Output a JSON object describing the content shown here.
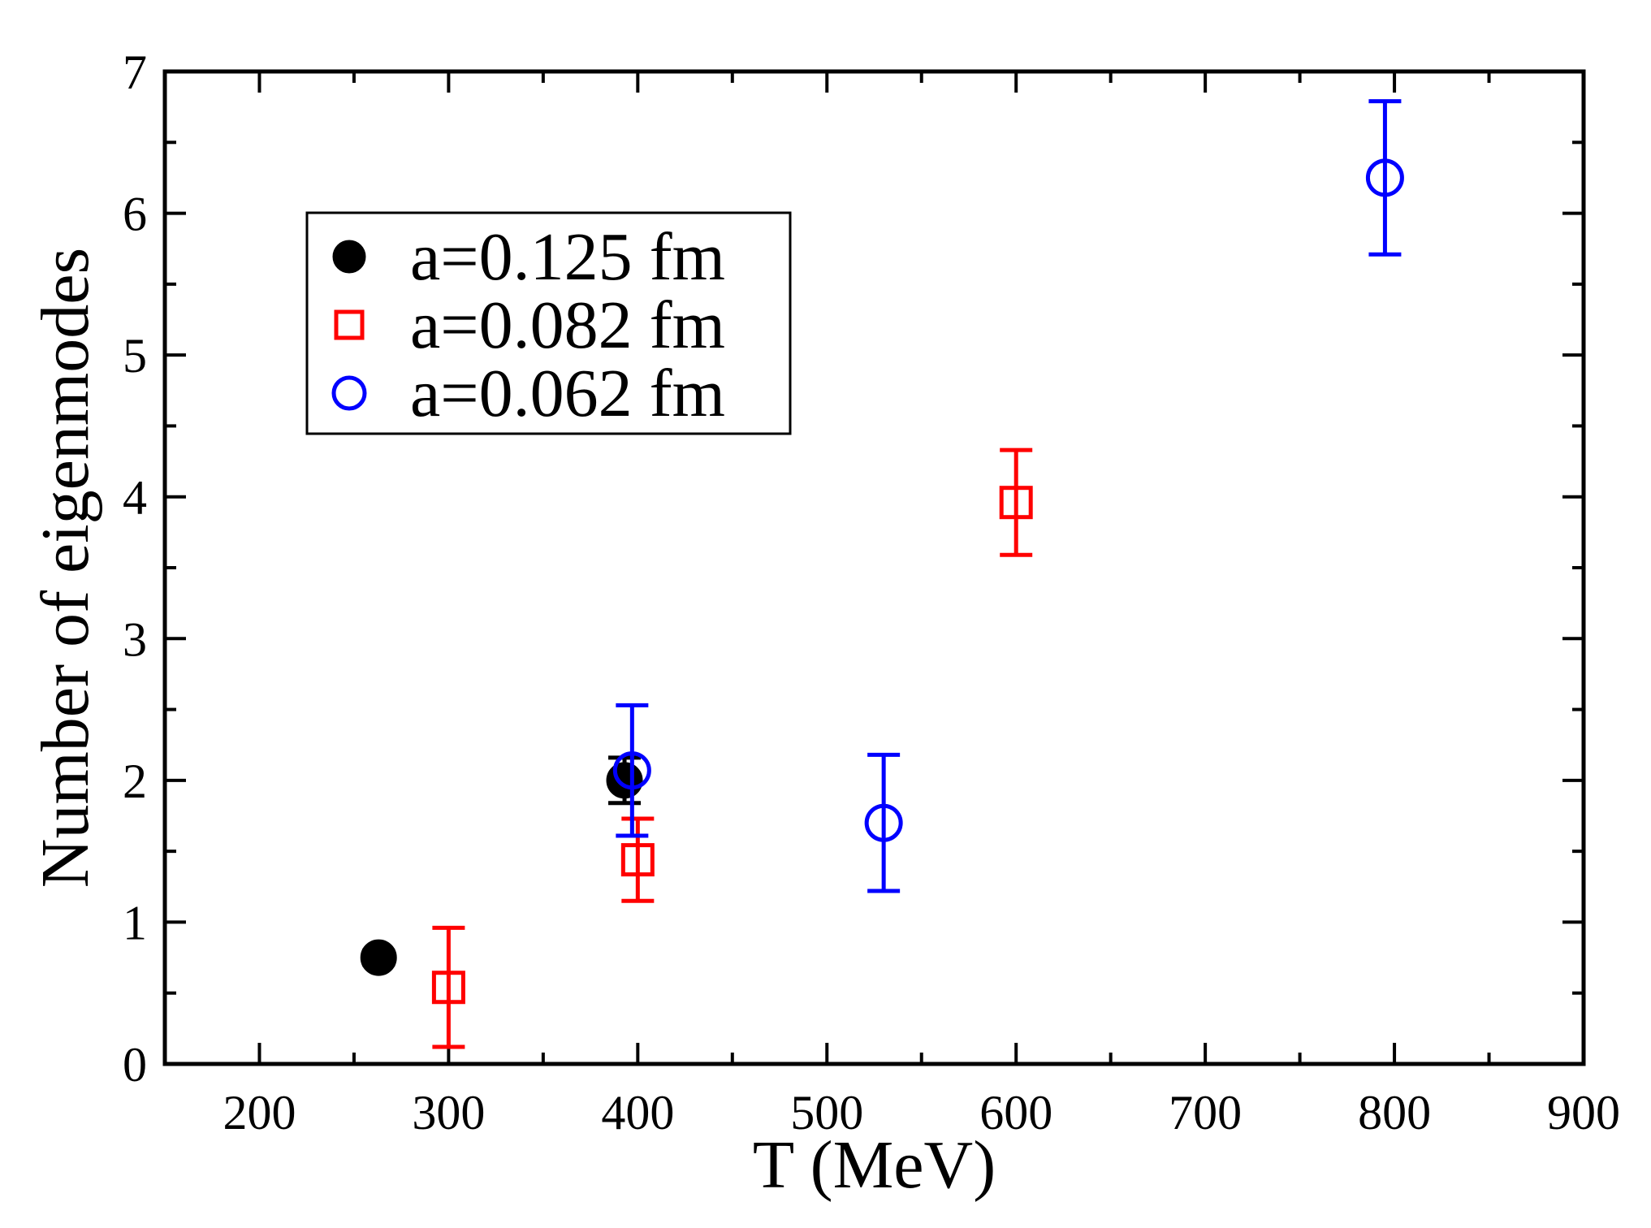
{
  "chart_data": {
    "type": "scatter",
    "title": "",
    "xlabel": "T (MeV)",
    "ylabel": "Number of eigenmodes",
    "xlim": [
      150,
      900
    ],
    "ylim": [
      0,
      7
    ],
    "x_major_ticks": [
      200,
      300,
      400,
      500,
      600,
      700,
      800,
      900
    ],
    "x_tick_labels": [
      "200",
      "300",
      "400",
      "500",
      "600",
      "700",
      "800",
      "900"
    ],
    "x_minor_ticks": [
      250,
      350,
      450,
      550,
      650,
      750,
      850
    ],
    "y_major_ticks": [
      0,
      1,
      2,
      3,
      4,
      5,
      6,
      7
    ],
    "y_tick_labels": [
      "0",
      "1",
      "2",
      "3",
      "4",
      "5",
      "6",
      "7"
    ],
    "y_minor_ticks": [
      0.5,
      1.5,
      2.5,
      3.5,
      4.5,
      5.5,
      6.5
    ],
    "grid": false,
    "legend_position": "top-left",
    "series": [
      {
        "name": "a=0.125 fm",
        "marker": "filled-circle",
        "color": "#000000",
        "points": [
          {
            "x": 263,
            "y": 0.75,
            "err": 0.05
          },
          {
            "x": 393,
            "y": 2.0,
            "err": 0.16
          }
        ]
      },
      {
        "name": "a=0.082 fm",
        "marker": "open-square",
        "color": "#ff0000",
        "points": [
          {
            "x": 300,
            "y": 0.54,
            "err": 0.42
          },
          {
            "x": 400,
            "y": 1.44,
            "err": 0.29
          },
          {
            "x": 600,
            "y": 3.96,
            "err": 0.37
          }
        ]
      },
      {
        "name": "a=0.062 fm",
        "marker": "open-circle",
        "color": "#0000ff",
        "points": [
          {
            "x": 397,
            "y": 2.07,
            "err": 0.46
          },
          {
            "x": 530,
            "y": 1.7,
            "err": 0.48
          },
          {
            "x": 795,
            "y": 6.25,
            "err": 0.54
          }
        ]
      }
    ]
  }
}
